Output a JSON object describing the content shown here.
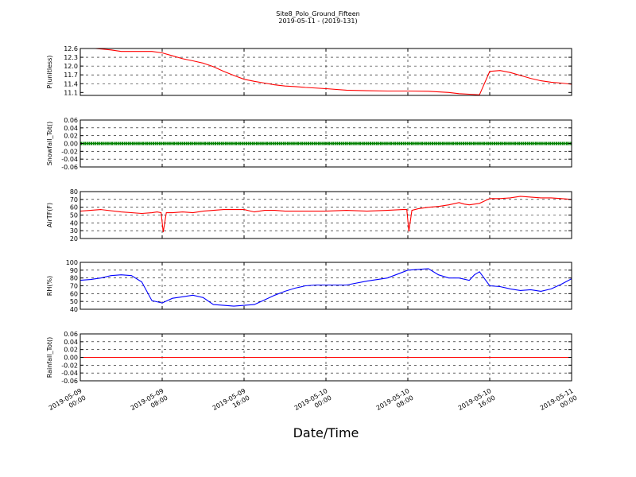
{
  "chart_data": {
    "type": "line",
    "title": "Site8_Polo_Ground_Fifteen",
    "subtitle": "2019-05-11 - (2019-131)",
    "xlabel": "Date/Time",
    "x_tick_labels": [
      [
        "2019-05-09",
        "00:00"
      ],
      [
        "2019-05-09",
        "08:00"
      ],
      [
        "2019-05-09",
        "16:00"
      ],
      [
        "2019-05-10",
        "00:00"
      ],
      [
        "2019-05-10",
        "08:00"
      ],
      [
        "2019-05-10",
        "16:00"
      ],
      [
        "2019-05-11",
        "00:00"
      ]
    ],
    "x_range_hours": [
      0,
      48
    ],
    "grid": true,
    "panels": [
      {
        "ylabel": "P(unitless)",
        "ylim": [
          11.0,
          12.6
        ],
        "yticks": [
          "11.1",
          "11.4",
          "11.7",
          "12.0",
          "12.3",
          "12.6"
        ],
        "color": "#ff0000",
        "series": {
          "x": [
            0,
            3,
            4,
            6,
            7,
            8,
            9,
            10,
            11,
            12,
            13,
            14,
            15,
            16,
            17,
            18,
            19,
            20,
            21,
            22,
            24,
            26,
            28,
            30,
            32,
            34,
            36,
            37,
            38,
            39,
            40,
            41,
            42,
            43,
            44,
            45,
            46,
            47,
            48
          ],
          "y": [
            12.65,
            12.55,
            12.5,
            12.5,
            12.5,
            12.45,
            12.35,
            12.25,
            12.18,
            12.1,
            11.98,
            11.82,
            11.68,
            11.55,
            11.48,
            11.42,
            11.36,
            11.32,
            11.3,
            11.27,
            11.23,
            11.18,
            11.16,
            11.15,
            11.15,
            11.14,
            11.1,
            11.06,
            11.04,
            11.02,
            11.82,
            11.85,
            11.78,
            11.68,
            11.58,
            11.5,
            11.45,
            11.42,
            11.38
          ]
        }
      },
      {
        "ylabel": "Snowfall_Tot()",
        "ylim": [
          -0.06,
          0.06
        ],
        "yticks": [
          "-0.06",
          "-0.04",
          "-0.02",
          "0.00",
          "0.02",
          "0.04",
          "0.06"
        ],
        "color": "#008000",
        "markers": true,
        "series": {
          "x": [
            0,
            48
          ],
          "y": [
            0,
            0
          ]
        }
      },
      {
        "ylabel": "AirTF(F)",
        "ylim": [
          20,
          80
        ],
        "yticks": [
          "20",
          "30",
          "40",
          "50",
          "60",
          "70",
          "80"
        ],
        "color": "#ff0000",
        "series": {
          "x": [
            0,
            1,
            2,
            4,
            6,
            7,
            7.5,
            7.9,
            8.1,
            8.4,
            9,
            10,
            11,
            12,
            13,
            14,
            15,
            16,
            17,
            18,
            19,
            20,
            22,
            24,
            26,
            28,
            30,
            31.5,
            31.9,
            32.1,
            32.4,
            33,
            34,
            35,
            36,
            37,
            37.5,
            38,
            39,
            40,
            41,
            42,
            43,
            44,
            45,
            46,
            47,
            48
          ],
          "y": [
            55,
            56,
            57,
            54,
            52,
            53,
            54,
            53,
            28,
            53,
            53,
            54,
            53,
            55,
            56,
            57,
            57,
            57,
            54,
            56,
            56,
            55,
            55,
            55,
            56,
            55,
            56,
            57,
            57,
            29,
            56,
            58,
            60,
            61,
            63,
            66,
            64,
            63,
            65,
            71,
            71,
            72,
            74,
            73,
            72,
            72,
            71,
            70
          ]
        }
      },
      {
        "ylabel": "RH(%)",
        "ylim": [
          40,
          100
        ],
        "yticks": [
          "40",
          "50",
          "60",
          "70",
          "80",
          "90",
          "100"
        ],
        "color": "#0000ff",
        "series": {
          "x": [
            0,
            1,
            2,
            3,
            4,
            5,
            6,
            7,
            8,
            9,
            10,
            11,
            12,
            13,
            14,
            15,
            16,
            17,
            18,
            19,
            20,
            21,
            22,
            23,
            24,
            26,
            28,
            30,
            31,
            32,
            33,
            34,
            35,
            36,
            37,
            38,
            38.5,
            39,
            40,
            41,
            42,
            43,
            44,
            45,
            46,
            47,
            48
          ],
          "y": [
            77,
            78,
            80,
            83,
            84,
            83,
            75,
            51,
            48,
            54,
            56,
            58,
            55,
            46,
            45,
            44,
            45,
            46,
            52,
            58,
            63,
            67,
            70,
            71,
            71,
            71,
            76,
            80,
            85,
            90,
            91,
            92,
            84,
            80,
            80,
            77,
            84,
            88,
            70,
            69,
            66,
            64,
            65,
            63,
            66,
            72,
            79
          ]
        }
      },
      {
        "ylabel": "Rainfall_Tot()",
        "ylim": [
          -0.06,
          0.06
        ],
        "yticks": [
          "-0.06",
          "-0.04",
          "-0.02",
          "0.00",
          "0.02",
          "0.04",
          "0.06"
        ],
        "color": "#ff0000",
        "series": {
          "x": [
            0,
            48
          ],
          "y": [
            0,
            0
          ]
        }
      }
    ]
  }
}
